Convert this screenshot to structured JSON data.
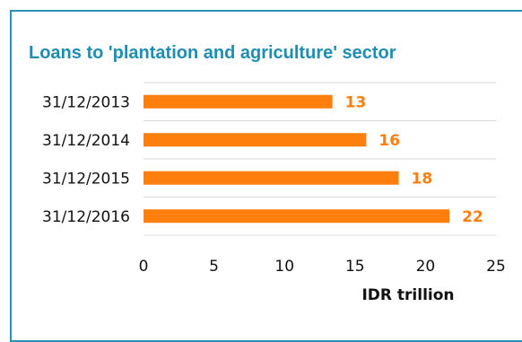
{
  "chart_data": {
    "type": "bar",
    "orientation": "horizontal",
    "title": "Loans to 'plantation and agriculture' sector",
    "categories": [
      "31/12/2013",
      "31/12/2014",
      "31/12/2015",
      "31/12/2016"
    ],
    "values": [
      13.4,
      15.8,
      18.1,
      21.7
    ],
    "data_labels": [
      "13",
      "16",
      "18",
      "22"
    ],
    "xlabel": "IDR trillion",
    "ylabel": "",
    "xlim": [
      0,
      25
    ],
    "x_ticks": [
      "0",
      "5",
      "10",
      "15",
      "20",
      "25"
    ],
    "grid": true,
    "legend": "none"
  },
  "colors": {
    "bar": "#ff7f0e",
    "label": "#ff7f0e",
    "title": "#1f8db2",
    "frame": "#2b8fb3",
    "grid": "#d9d9d9"
  }
}
